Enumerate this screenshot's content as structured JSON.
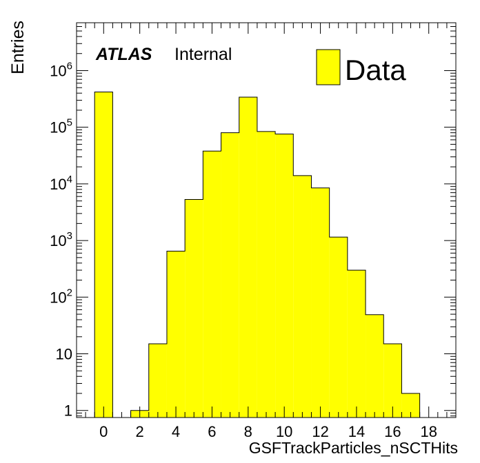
{
  "header": {
    "experiment": "ATLAS",
    "status": "Internal"
  },
  "colors": {
    "fill": "#ffff00",
    "line": "#000000",
    "background": "#ffffff"
  },
  "chart_data": {
    "type": "bar",
    "histogram_style": "step-filled",
    "xlabel": "GSFTrackParticles_nSCTHits",
    "ylabel": "Entries",
    "x_scale": "linear",
    "y_scale": "log",
    "xlim": [
      -1.5,
      19.5
    ],
    "ylim": [
      0.75,
      7000000
    ],
    "x_ticks": [
      0,
      2,
      4,
      6,
      8,
      10,
      12,
      14,
      16,
      18
    ],
    "x_tick_labels": [
      "0",
      "2",
      "4",
      "6",
      "8",
      "10",
      "12",
      "14",
      "16",
      "18"
    ],
    "y_ticks": [
      1,
      10,
      100,
      1000,
      10000,
      100000,
      1000000
    ],
    "y_tick_labels": [
      {
        "base": "1",
        "exp": ""
      },
      {
        "base": "10",
        "exp": ""
      },
      {
        "base": "10",
        "exp": "2"
      },
      {
        "base": "10",
        "exp": "3"
      },
      {
        "base": "10",
        "exp": "4"
      },
      {
        "base": "10",
        "exp": "5"
      },
      {
        "base": "10",
        "exp": "6"
      }
    ],
    "bin_width": 1,
    "series": [
      {
        "name": "Data",
        "bins": [
          {
            "x": 0,
            "value": 420000
          },
          {
            "x": 1,
            "value": 0
          },
          {
            "x": 2,
            "value": 1
          },
          {
            "x": 3,
            "value": 15
          },
          {
            "x": 4,
            "value": 650
          },
          {
            "x": 5,
            "value": 5300
          },
          {
            "x": 6,
            "value": 38000
          },
          {
            "x": 7,
            "value": 80000
          },
          {
            "x": 8,
            "value": 340000
          },
          {
            "x": 9,
            "value": 84000
          },
          {
            "x": 10,
            "value": 76000
          },
          {
            "x": 11,
            "value": 14000
          },
          {
            "x": 12,
            "value": 8500
          },
          {
            "x": 13,
            "value": 1150
          },
          {
            "x": 14,
            "value": 300
          },
          {
            "x": 15,
            "value": 49
          },
          {
            "x": 16,
            "value": 15
          },
          {
            "x": 17,
            "value": 2
          }
        ]
      }
    ],
    "legend": {
      "position": "top-right",
      "entries": [
        "Data"
      ]
    },
    "grid": false
  }
}
